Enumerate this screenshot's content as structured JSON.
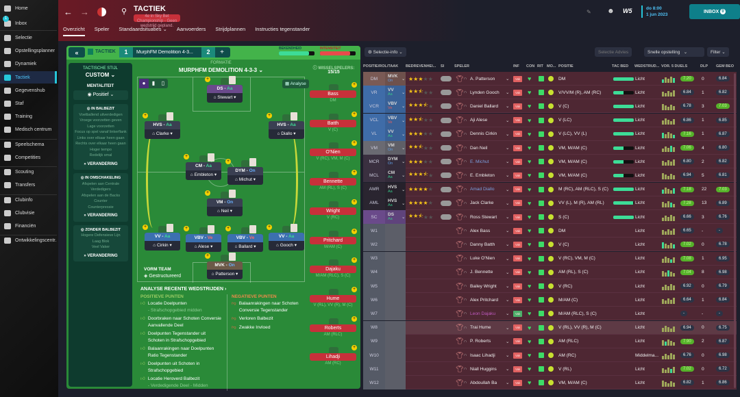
{
  "sidebar": {
    "items": [
      {
        "label": "Home"
      },
      {
        "label": "Inbox",
        "badge": "1"
      },
      {
        "label": "Selectie"
      },
      {
        "label": "Opstellingsplanner"
      },
      {
        "label": "Dynamiek"
      },
      {
        "label": "Tactiek",
        "active": true
      },
      {
        "label": "Gegevenshub"
      },
      {
        "label": "Staf"
      },
      {
        "label": "Training"
      },
      {
        "label": "Medisch centrum"
      },
      {
        "label": "Speelschema"
      },
      {
        "label": "Competities"
      },
      {
        "label": "Scouting"
      },
      {
        "label": "Transfers"
      },
      {
        "label": "Clubinfo"
      },
      {
        "label": "Clubvisie"
      },
      {
        "label": "Financiën"
      },
      {
        "label": "Ontwikkelingscentr."
      }
    ]
  },
  "header": {
    "title": "TACTIEK",
    "subtitle": "4e in Sky Bet Championship - Geen wedstrijd gepland.",
    "date_line1": "do 8:00",
    "date_line2": "1 jun 2023",
    "inbox": "INBOX",
    "inbox_count": "0",
    "logo_text": "W5"
  },
  "tabs": [
    {
      "label": "Overzicht",
      "active": true
    },
    {
      "label": "Speler"
    },
    {
      "label": "Standaardsituaties ⌄"
    },
    {
      "label": "Aanvoerders"
    },
    {
      "label": "Strijdplannen"
    },
    {
      "label": "Instructies tegenstander"
    }
  ],
  "tactic": {
    "label": "TACTIEK",
    "slot1": "1",
    "name": "MurphFM Demolition 4-3...",
    "slot2": "2",
    "add": "+",
    "familiarity_label": "BEKENDHEID",
    "familiarity": 0.85,
    "intensity_label": "INTENSITEIT",
    "intensity": 0.85,
    "style_label": "TACTISCHE STIJL",
    "style": "CUSTOM",
    "mentality_label": "MENTALITEIT",
    "mentality": "Positief",
    "in_possession": {
      "title": "IN BALBEZIT",
      "items": [
        "Voetballend uitverdedigen",
        "Vroege voorzetten geven",
        "Lage voorzetten",
        "Focus op spel vanaf linkerflank",
        "Links over elkaar heen gaan",
        "Rechts over elkaar heen gaan",
        "Hoger tempo",
        "Redelijk smal"
      ]
    },
    "transition": {
      "title": "IN OMSCHAKELING",
      "items": [
        "Afspelen aan Centrale Verdedigers",
        "Afspelen aan de Backs",
        "Counter",
        "Counterpressie"
      ]
    },
    "out_possession": {
      "title": "ZONDER BALBEZIT",
      "items": [
        "Hogere Defensieve Lijn",
        "Laag Blok",
        "Veel Vaker"
      ]
    },
    "change": "VERANDERING",
    "formation_label": "FORMATIE",
    "formation": "MURPHFM DEMOLITION 4-3-3",
    "subs_label": "WISSELSPELERS:",
    "subs_count": "15/15",
    "analyse": "Analyse",
    "team_shape_label": "VORM TEAM",
    "team_shape": "Gestructureerd"
  },
  "pitch": [
    {
      "role": "DS",
      "duty": "Aa",
      "name": "Stewart"
    },
    {
      "role": "HVS",
      "duty": "Aa",
      "name": "Clarke"
    },
    {
      "role": "HVS",
      "duty": "Aa",
      "name": "Diallo"
    },
    {
      "role": "CM",
      "duty": "Aa",
      "name": "Embleton"
    },
    {
      "role": "DYM",
      "duty": "On",
      "name": "Michut"
    },
    {
      "role": "VM",
      "duty": "On",
      "name": "Neil"
    },
    {
      "role": "VV",
      "duty": "Aa",
      "name": "Cirkin"
    },
    {
      "role": "VBV",
      "duty": "Ve",
      "name": "Alese"
    },
    {
      "role": "VBV",
      "duty": "Ve",
      "name": "Ballard"
    },
    {
      "role": "VV",
      "duty": "Aa",
      "name": "Gooch"
    },
    {
      "role": "MVK",
      "duty": "On",
      "name": "Patterson"
    }
  ],
  "subs": [
    {
      "name": "Bass",
      "pos": "DM"
    },
    {
      "name": "Batth",
      "pos": "V (C)"
    },
    {
      "name": "O'Nien",
      "pos": "V (RC), VM, M (C)"
    },
    {
      "name": "Bennette",
      "pos": "AM (RL), S (C)"
    },
    {
      "name": "Wright",
      "pos": "V (RC)"
    },
    {
      "name": "Pritchard",
      "pos": "M/AM (C)"
    },
    {
      "name": "Dajaku",
      "pos": "M/AM (RLC), S (C)"
    },
    {
      "name": "Hume",
      "pos": "V (RL), VV (R), M (C)"
    },
    {
      "name": "Roberts",
      "pos": "AM (RLC)"
    },
    {
      "name": "Lihadji",
      "pos": "AM (RC)"
    }
  ],
  "analysis": {
    "title": "ANALYSE RECENTE WEDSTRIJDEN ›",
    "pos_title": "POSITIEVE PUNTEN",
    "neg_title": "NEGATIEVE PUNTEN",
    "positive": [
      {
        "t": "Locatie Doelpunten",
        "s": "- Strafschopgebied midden"
      },
      {
        "t": "Doorbraken naar Schoten Conversie Aanvallende Deel",
        "s": ""
      },
      {
        "t": "Doelpunten Tegenstander uit Schoten in Strafschopgebied",
        "s": ""
      },
      {
        "t": "Balaanrakingen naar Doelpunten Ratio Tegenstander",
        "s": ""
      },
      {
        "t": "Doelpunten uit Schoten in Strafschopgebied",
        "s": ""
      },
      {
        "t": "Locatie Heroverd Balbezit",
        "s": "- Verdedigende Deel - Midden"
      }
    ],
    "negative": [
      {
        "t": "Balaanrakingen naar Schoten Conversie Tegenstander"
      },
      {
        "t": "Verloren Balbezit"
      },
      {
        "t": "Zwakke Invloed"
      }
    ]
  },
  "squad": {
    "selection_info": "Selectie-info",
    "advice": "Selectie Advies",
    "quick": "Snelle opstelling",
    "filter": "Filter",
    "headers": [
      "POSITIE/ROL/TAAK",
      "BEDREVENHEI...",
      "SI",
      "SPELER",
      "INF",
      "CON",
      "RIT",
      "MO...",
      "POSITIE",
      "TAC BED",
      "WEDSTRUD...",
      "VOR. 5 DUELS",
      "DLP",
      "GEM BEO"
    ],
    "rows": [
      {
        "slot": "DM",
        "role": "MVK",
        "duty": "On",
        "stars": 3,
        "name": "A. Patterson",
        "pos": "DM",
        "tac": 1.0,
        "load": "Licht",
        "form": "7.20",
        "fg": true,
        "dlp": "0",
        "avg": "6.84",
        "ag": false
      },
      {
        "slot": "VR",
        "role": "VV",
        "duty": "Aa",
        "stars": 2.5,
        "name": "Lynden Gooch",
        "pos": "V/VV/M (R), AM (RC)",
        "tac": 0.5,
        "load": "Licht",
        "form": "6.84",
        "fg": false,
        "dlp": "1",
        "avg": "6.82",
        "ag": false
      },
      {
        "slot": "VCR",
        "role": "VBV",
        "duty": "Ve",
        "stars": 3.5,
        "name": "Daniel Ballard",
        "pos": "V (C)",
        "tac": 1.0,
        "load": "Licht",
        "form": "6.78",
        "fg": false,
        "dlp": "3",
        "avg": "7.03",
        "ag": true
      },
      {
        "slot": "VCL",
        "role": "VBV",
        "duty": "Ve",
        "stars": 2.5,
        "name": "Aji Alese",
        "pos": "V (LC)",
        "tac": 1.0,
        "load": "Licht",
        "form": "6.86",
        "fg": false,
        "dlp": "1",
        "avg": "6.85",
        "ag": false
      },
      {
        "slot": "VL",
        "role": "VV",
        "duty": "Aa",
        "stars": 3,
        "name": "Dennis Cirkin",
        "pos": "V (LC), VV (L)",
        "tac": 1.0,
        "load": "Licht",
        "form": "7.16",
        "fg": true,
        "dlp": "1",
        "avg": "6.87",
        "ag": false
      },
      {
        "slot": "VM",
        "role": "VM",
        "duty": "On",
        "stars": 2.5,
        "name": "Dan Neil",
        "pos": "VM, M/AM (C)",
        "tac": 0.5,
        "load": "Licht",
        "form": "7.06",
        "fg": true,
        "dlp": "4",
        "avg": "6.80",
        "ag": false
      },
      {
        "slot": "MCR",
        "role": "DYM",
        "duty": "On",
        "stars": 3,
        "name": "E. Michut",
        "pos": "VM, M/AM (C)",
        "tac": 0.5,
        "load": "Licht",
        "form": "6.80",
        "fg": false,
        "dlp": "2",
        "avg": "6.82",
        "ag": false,
        "nc": "#7aa0e0"
      },
      {
        "slot": "MCL",
        "role": "CM",
        "duty": "Aa",
        "stars": 3.5,
        "name": "E. Embleton",
        "pos": "VM, M/AM (C)",
        "tac": 0.5,
        "load": "Licht",
        "form": "6.94",
        "fg": false,
        "dlp": "5",
        "avg": "6.81",
        "ag": false
      },
      {
        "slot": "AMR",
        "role": "HVS",
        "duty": "Aa",
        "stars": 4,
        "name": "Amad Diallo",
        "pos": "M (RC), AM (RLC), S (C)",
        "tac": 1.0,
        "load": "Licht",
        "form": "7.18",
        "fg": true,
        "dlp": "22",
        "avg": "7.03",
        "ag": true,
        "nc": "#7aa0e0"
      },
      {
        "slot": "AML",
        "role": "HVS",
        "duty": "Aa",
        "stars": 4,
        "name": "Jack Clarke",
        "pos": "VV (L), M (R), AM (RL)",
        "tac": 0.95,
        "load": "Licht",
        "form": "7.28",
        "fg": true,
        "dlp": "13",
        "avg": "6.89",
        "ag": false
      },
      {
        "slot": "SC",
        "role": "DS",
        "duty": "Aa",
        "stars": 2.5,
        "name": "Ross Stewart",
        "pos": "S (C)",
        "tac": 1.0,
        "load": "Licht",
        "form": "6.66",
        "fg": false,
        "dlp": "3",
        "avg": "6.76",
        "ag": false
      },
      {
        "slot": "W1",
        "name": "Alex Bass",
        "pos": "DM",
        "load": "Licht",
        "form": "6.65",
        "fg": false,
        "dlp": "-",
        "avg": "-",
        "ag": false
      },
      {
        "slot": "W2",
        "name": "Danny Batth",
        "pos": "V (C)",
        "load": "Licht",
        "form": "7.02",
        "fg": true,
        "dlp": "0",
        "avg": "6.78",
        "ag": false
      },
      {
        "slot": "W3",
        "name": "Luke O'Nien",
        "pos": "V (RC), VM, M (C)",
        "load": "Licht",
        "form": "7.08",
        "fg": true,
        "dlp": "1",
        "avg": "6.95",
        "ag": false
      },
      {
        "slot": "W4",
        "name": "J. Bennette",
        "pos": "AM (RL), S (C)",
        "load": "Licht",
        "form": "7.04",
        "fg": true,
        "dlp": "8",
        "avg": "6.98",
        "ag": false
      },
      {
        "slot": "W5",
        "name": "Bailey Wright",
        "pos": "V (RC)",
        "load": "Licht",
        "form": "6.92",
        "fg": false,
        "dlp": "0",
        "avg": "6.79",
        "ag": false
      },
      {
        "slot": "W6",
        "name": "Alex Pritchard",
        "pos": "M/AM (C)",
        "load": "Licht",
        "form": "6.64",
        "fg": false,
        "dlp": "1",
        "avg": "6.84",
        "ag": false
      },
      {
        "slot": "W7",
        "name": "Leon Dajaku",
        "pos": "M/AM (RLC), S (C)",
        "load": "Licht",
        "form": "-",
        "fg": false,
        "dlp": "-",
        "avg": "-",
        "ag": false,
        "nc": "#c05ac0"
      },
      {
        "slot": "W8",
        "name": "Trai Hume",
        "pos": "V (RL), VV (R), M (C)",
        "load": "Licht",
        "form": "6.94",
        "fg": false,
        "dlp": "0",
        "avg": "6.75",
        "ag": false,
        "hl": true
      },
      {
        "slot": "W9",
        "name": "P. Roberts",
        "pos": "AM (RLC)",
        "load": "Licht",
        "form": "7.90",
        "fg": true,
        "dlp": "2",
        "avg": "6.87",
        "ag": false
      },
      {
        "slot": "W10",
        "name": "Isaac Lihadji",
        "pos": "AM (RC)",
        "load": "Middelma...",
        "form": "6.76",
        "fg": false,
        "dlp": "0",
        "avg": "6.98",
        "ag": false
      },
      {
        "slot": "W11",
        "name": "Niall Huggins",
        "pos": "V (RL)",
        "load": "Licht",
        "form": "7.02",
        "fg": true,
        "dlp": "0",
        "avg": "6.72",
        "ag": false
      },
      {
        "slot": "W12",
        "name": "Abdoullah Ba",
        "pos": "VM, M/AM (C)",
        "load": "Licht",
        "form": "6.82",
        "fg": false,
        "dlp": "1",
        "avg": "6.86",
        "ag": false
      }
    ],
    "inf_label": "Vak"
  },
  "colors": {
    "accent": "#26c6da",
    "green_panel": "#2a8a38",
    "row_bg": "#4e2733",
    "sub_red": "#c7303a",
    "rating_green": "#56b22a"
  }
}
